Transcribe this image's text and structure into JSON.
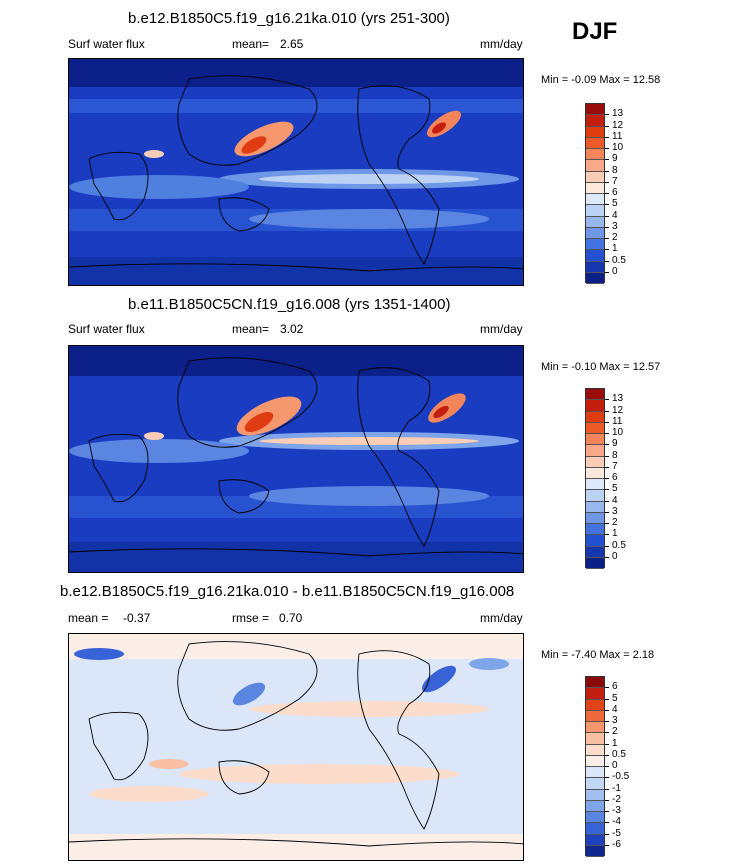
{
  "season": "DJF",
  "panels": [
    {
      "title": "b.e12.B1850C5.f19_g16.21ka.010 (yrs 251-300)",
      "left_label": "Surf water flux",
      "mean_label": "mean=",
      "mean_value": "2.65",
      "units": "mm/day",
      "minmax": "Min =  -0.09  Max =  12.58",
      "colorbar": {
        "levels": [
          "13",
          "12",
          "11",
          "10",
          "9",
          "8",
          "7",
          "6",
          "5",
          "4",
          "3",
          "2",
          "1",
          "0.5",
          "0"
        ],
        "colors": [
          "#9a0d0d",
          "#c41e0e",
          "#df3c12",
          "#ec5a2a",
          "#f4855a",
          "#f8a98a",
          "#fbcdb6",
          "#fde8dc",
          "#dde8f8",
          "#bcd2f4",
          "#98b7ee",
          "#6f97e6",
          "#4273de",
          "#2351cf",
          "#1636b0",
          "#0b1f86"
        ]
      }
    },
    {
      "title": "b.e11.B1850C5CN.f19_g16.008 (yrs 1351-1400)",
      "left_label": "Surf water flux",
      "mean_label": "mean=",
      "mean_value": "3.02",
      "units": "mm/day",
      "minmax": "Min =  -0.10  Max =  12.57",
      "colorbar": {
        "levels": [
          "13",
          "12",
          "11",
          "10",
          "9",
          "8",
          "7",
          "6",
          "5",
          "4",
          "3",
          "2",
          "1",
          "0.5",
          "0"
        ],
        "colors": [
          "#9a0d0d",
          "#c41e0e",
          "#df3c12",
          "#ec5a2a",
          "#f4855a",
          "#f8a98a",
          "#fbcdb6",
          "#fde8dc",
          "#dde8f8",
          "#bcd2f4",
          "#98b7ee",
          "#6f97e6",
          "#4273de",
          "#2351cf",
          "#1636b0",
          "#0b1f86"
        ]
      }
    },
    {
      "title": "b.e12.B1850C5.f19_g16.21ka.010 - b.e11.B1850C5CN.f19_g16.008",
      "left_label": "mean =",
      "mean_value": "-0.37",
      "rmse_label": "rmse =",
      "rmse_value": "0.70",
      "units": "mm/day",
      "minmax": "Min =  -7.40  Max =   2.18",
      "colorbar": {
        "levels": [
          "6",
          "5",
          "4",
          "3",
          "2",
          "1",
          "0.5",
          "0",
          "-0.5",
          "-1",
          "-2",
          "-3",
          "-4",
          "-5",
          "-6"
        ],
        "colors": [
          "#8a0a0a",
          "#c31f10",
          "#e04418",
          "#ee6a3c",
          "#f6976e",
          "#f9bfa2",
          "#fcdccb",
          "#fbeee6",
          "#dbe7f9",
          "#c2d6f5",
          "#a2bff0",
          "#7ea4ea",
          "#5a86e2",
          "#3763d6",
          "#1f42bd",
          "#0f278f"
        ]
      }
    }
  ]
}
